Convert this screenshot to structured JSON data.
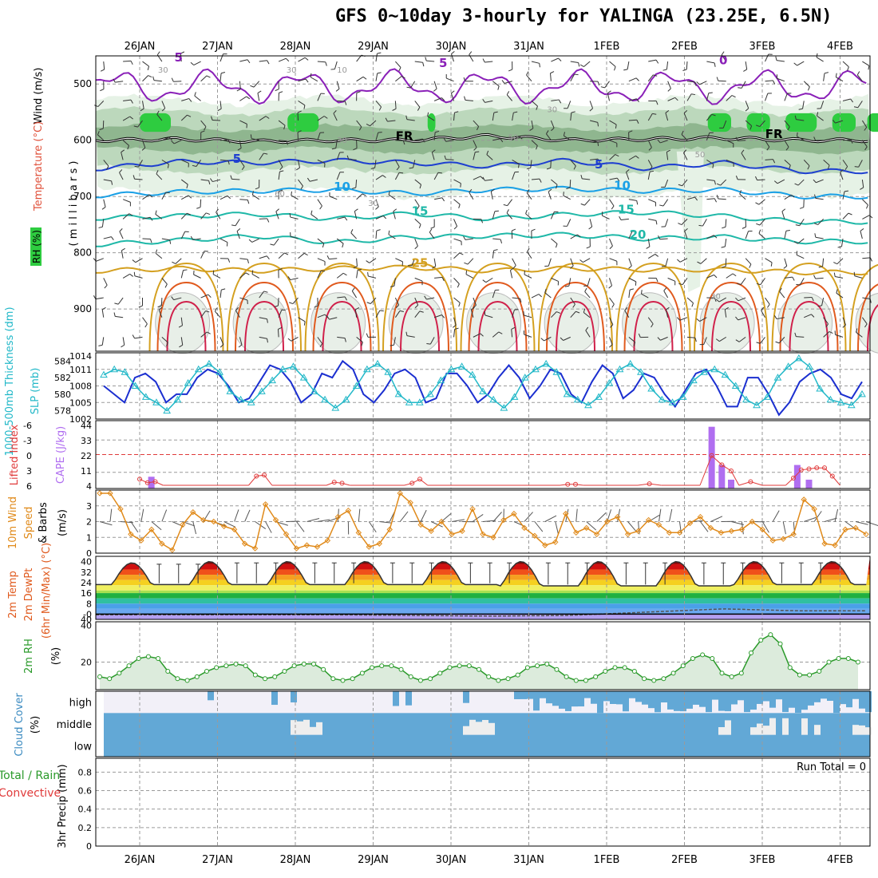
{
  "title": "GFS 0~10day 3-hourly for YALINGA (23.25E, 6.5N)",
  "colors": {
    "temp_cold": "#1e3fd0",
    "temp_cool": "#1aa0e6",
    "temp_mild": "#1fb8a8",
    "temp_warm": "#d4a020",
    "temp_hot": "#e05a1e",
    "temp_vhot": "#d0204a",
    "fr_line": "#000000",
    "rh_light": "#e6f2e6",
    "rh_med": "#bcd8bc",
    "rh_dark": "#8fb68f",
    "rh_green": "#2ecc40",
    "thickness": "#1b2fd0",
    "slp": "#22b8c8",
    "cape": "#b06ef0",
    "lifted": "#e03a3a",
    "wind": "#e08a1a",
    "rh2m": "#2a9a2a",
    "cloud": "#62a8d6",
    "cloud_bg": "#eeeeee"
  },
  "chart_data": [
    {
      "id": "upper",
      "type": "contour",
      "ylabel_parts": [
        "RH (%)",
        "Temperature (°C)",
        "Wind (m/s)"
      ],
      "yunit": "( m i l l i b a r s )",
      "x": [
        "26JAN",
        "27JAN",
        "28JAN",
        "29JAN",
        "30JAN",
        "31JAN",
        "1FEB",
        "2FEB",
        "3FEB",
        "4FEB"
      ],
      "y_ticks": [
        500,
        600,
        700,
        800,
        900
      ],
      "ylim": [
        975,
        450
      ],
      "contour_labels": [
        "5",
        "5",
        "0",
        "FR",
        "FR",
        "5",
        "5",
        "10",
        "10",
        "15",
        "15",
        "20",
        "25",
        "30",
        "30",
        "30",
        "30",
        "50",
        "50",
        "60",
        "30",
        "30",
        "10"
      ],
      "temperature_levels": [
        {
          "value": 5,
          "pressure": [
            650,
            638,
            640,
            636,
            640,
            646,
            636,
            650,
            640,
            655
          ]
        },
        {
          "value": 10,
          "pressure": [
            698,
            692,
            690,
            688,
            695,
            688,
            686,
            690,
            688,
            700
          ]
        },
        {
          "value": 15,
          "pressure": [
            738,
            735,
            731,
            740,
            730,
            740,
            732,
            728,
            735,
            745
          ]
        },
        {
          "value": 20,
          "pressure": [
            785,
            778,
            770,
            782,
            772,
            770,
            768,
            775,
            772,
            780
          ]
        },
        {
          "value": 25,
          "pressure": [
            832,
            828,
            832,
            828,
            826,
            832,
            828,
            830,
            830,
            835
          ]
        }
      ],
      "freezing_level": [
        600,
        598,
        602,
        600,
        600,
        592,
        600,
        598,
        596,
        600
      ]
    },
    {
      "id": "thickness_slp",
      "type": "line",
      "ylabel": "1000-500mb Thickness (dm)",
      "ylabel2": "SLP (mb)",
      "y_ticks": [
        578,
        580,
        582,
        584
      ],
      "y2_ticks": [
        1005,
        1008,
        1011
      ],
      "y2_top_label": "1014",
      "y2_bottom_label": "1002",
      "ylim": [
        577,
        585
      ],
      "y2lim": [
        1002,
        1014
      ],
      "series": [
        {
          "name": "Thickness",
          "values": [
            581,
            580,
            579,
            582,
            582.5,
            581.5,
            579,
            580,
            580,
            582,
            583,
            582.5,
            581,
            579,
            579.5,
            581.5,
            583.5,
            583,
            581.5,
            579,
            580,
            582.5,
            582,
            584,
            583,
            580,
            579,
            580.5,
            582.5,
            583,
            582,
            579,
            579.5,
            582.5,
            582.5,
            581,
            579,
            580,
            582,
            583.5,
            582,
            579.5,
            581,
            583,
            582.5,
            580,
            579,
            581.5,
            583.5,
            582.5,
            579.5,
            580.5,
            582.5,
            582,
            580,
            578.5,
            580.5,
            582.5,
            583,
            581,
            578.5,
            578.5,
            582,
            582,
            580,
            577.5,
            579,
            581.5,
            582.5,
            583,
            582,
            580,
            579.5,
            581.5
          ]
        },
        {
          "name": "SLP",
          "values": [
            1010,
            1011,
            1010.5,
            1008,
            1006,
            1005,
            1003.5,
            1005.5,
            1008.5,
            1011,
            1012,
            1010.5,
            1007,
            1005.5,
            1005,
            1007,
            1009,
            1011,
            1011.5,
            1009.5,
            1007,
            1005.5,
            1004,
            1005.5,
            1008,
            1011,
            1012,
            1010.5,
            1006.5,
            1005,
            1005,
            1006.5,
            1009,
            1011,
            1011.5,
            1010,
            1007,
            1005.5,
            1004,
            1006,
            1009.5,
            1011,
            1012,
            1010.5,
            1006.5,
            1005.5,
            1004.5,
            1006,
            1008.5,
            1011,
            1012,
            1010.5,
            1007.5,
            1005.5,
            1005,
            1006,
            1009,
            1010.5,
            1011,
            1010,
            1008,
            1005.5,
            1004.5,
            1006,
            1009.5,
            1011.5,
            1013,
            1011.5,
            1007.5,
            1005.5,
            1005,
            1004.5,
            1006.5
          ]
        }
      ]
    },
    {
      "id": "stability",
      "type": "bar",
      "ylabel": "Lifted Index",
      "ylabel2": "CAPE (J/kg)",
      "li_ticks": [
        "-6",
        "-3",
        "0",
        "3",
        "6"
      ],
      "cape_ticks": [
        "44",
        "33",
        "22",
        "11",
        "4"
      ],
      "cape_ylim": [
        0,
        44
      ],
      "cape_bars": [
        {
          "day": 0.15,
          "value": 8
        },
        {
          "day": 7.35,
          "value": 42
        },
        {
          "day": 7.48,
          "value": 16
        },
        {
          "day": 7.6,
          "value": 6
        },
        {
          "day": 8.45,
          "value": 16
        },
        {
          "day": 8.6,
          "value": 6
        }
      ],
      "li_points": [
        [
          0.0,
          4.8
        ],
        [
          0.1,
          5.5
        ],
        [
          0.2,
          5.3
        ],
        [
          0.3,
          6.5
        ],
        [
          1.4,
          6.5
        ],
        [
          1.5,
          4.2
        ],
        [
          1.6,
          4.0
        ],
        [
          1.7,
          6.5
        ],
        [
          2.4,
          6.5
        ],
        [
          2.5,
          5.4
        ],
        [
          2.6,
          5.6
        ],
        [
          2.7,
          6.5
        ],
        [
          3.4,
          6.5
        ],
        [
          3.5,
          5.6
        ],
        [
          3.6,
          4.8
        ],
        [
          3.7,
          6.5
        ],
        [
          5.4,
          6.5
        ],
        [
          5.5,
          5.8
        ],
        [
          5.6,
          5.8
        ],
        [
          5.7,
          6.5
        ],
        [
          6.4,
          6.5
        ],
        [
          6.55,
          5.7
        ],
        [
          6.7,
          6.5
        ],
        [
          7.2,
          6.5
        ],
        [
          7.35,
          0.2
        ],
        [
          7.48,
          2.0
        ],
        [
          7.6,
          3.2
        ],
        [
          7.7,
          6.5
        ],
        [
          7.85,
          5.3
        ],
        [
          8.0,
          6.5
        ],
        [
          8.3,
          6.5
        ],
        [
          8.4,
          4.6
        ],
        [
          8.5,
          3.0
        ],
        [
          8.6,
          2.8
        ],
        [
          8.7,
          2.6
        ],
        [
          8.8,
          2.6
        ],
        [
          8.9,
          4.2
        ],
        [
          9.0,
          6.5
        ]
      ]
    },
    {
      "id": "wind10m",
      "type": "line",
      "ylabel": "10m Wind Speed & Barbs (m/s)",
      "y_ticks": [
        0,
        1,
        2,
        3
      ],
      "ylim": [
        0,
        4
      ],
      "values": [
        3.8,
        3.8,
        2.8,
        1.2,
        0.8,
        1.5,
        0.6,
        0.2,
        1.8,
        2.6,
        2.1,
        2.0,
        1.7,
        1.5,
        0.6,
        0.3,
        3.1,
        2.1,
        1.2,
        0.3,
        0.5,
        0.4,
        0.8,
        2.3,
        2.7,
        1.3,
        0.4,
        0.6,
        1.5,
        3.8,
        3.2,
        1.8,
        1.4,
        2.0,
        1.2,
        1.4,
        2.8,
        1.2,
        1.0,
        2.1,
        2.5,
        1.6,
        1.1,
        0.5,
        0.7,
        2.5,
        1.3,
        1.6,
        1.2,
        2.0,
        2.3,
        1.2,
        1.4,
        2.1,
        1.8,
        1.3,
        1.3,
        1.9,
        2.3,
        1.6,
        1.3,
        1.4,
        1.5,
        2.0,
        1.5,
        0.8,
        0.9,
        1.2,
        3.4,
        2.8,
        0.6,
        0.5,
        1.5,
        1.6,
        1.2
      ]
    },
    {
      "id": "temp2m",
      "type": "area",
      "ylabel_parts": [
        "2m Temp",
        "2m DewPt",
        "(6hr Min/Max) (°C)"
      ],
      "y_ticks": [
        40,
        32,
        24,
        16,
        8,
        0
      ],
      "y_tick_labels": [
        "40",
        "32",
        "24",
        "16",
        "8",
        "-0"
      ],
      "y_bottom_label": "40",
      "ylim": [
        -4,
        44
      ],
      "daily_max": [
        39,
        40,
        40,
        40,
        40,
        40,
        40,
        40,
        40
      ],
      "daily_min": [
        22.5,
        22.5,
        22.5,
        22.5,
        22.5,
        21.5,
        21.5,
        21.5,
        22.5
      ],
      "dewpoint": [
        -0.5,
        -0.5,
        -0.5,
        -0.5,
        -1,
        -1.5,
        -1,
        1.5,
        4,
        2.5
      ]
    },
    {
      "id": "rh2m",
      "type": "area",
      "ylabel": "2m RH",
      "yunit": "(%)",
      "y_ticks": [
        20,
        40
      ],
      "ylim": [
        5,
        42
      ],
      "values": [
        12,
        11,
        14,
        18,
        22,
        23,
        22,
        15,
        11,
        10,
        12,
        15,
        17,
        18,
        19,
        18,
        13,
        11,
        12,
        15,
        18,
        19,
        19,
        16,
        11,
        10,
        11,
        14,
        17,
        18,
        18,
        16,
        12,
        10,
        11,
        14,
        17,
        18,
        18,
        16,
        12,
        10,
        11,
        13,
        17,
        18,
        19,
        16,
        12,
        10,
        10,
        12,
        15,
        17,
        17,
        15,
        11,
        10,
        11,
        14,
        18,
        22,
        24,
        22,
        14,
        12,
        14,
        25,
        32,
        35,
        30,
        17,
        13,
        13,
        15,
        20,
        22,
        22,
        20
      ]
    },
    {
      "id": "cloud",
      "type": "heatmap",
      "ylabel": "Cloud Cover (%)",
      "rows": [
        "high",
        "middle",
        "low"
      ]
    },
    {
      "id": "precip",
      "type": "bar",
      "ylabel": "3hr Precip (mm)",
      "ylabel_left": [
        "Total / Rain",
        "Convective"
      ],
      "y_ticks": [
        0,
        0.2,
        0.4,
        0.6,
        0.8
      ],
      "y_tick_labels": [
        "0",
        "0.2",
        "0.4",
        "0.6",
        "0.8"
      ],
      "ylim": [
        0,
        0.95
      ],
      "run_total": "Run Total = 0",
      "values": []
    }
  ]
}
